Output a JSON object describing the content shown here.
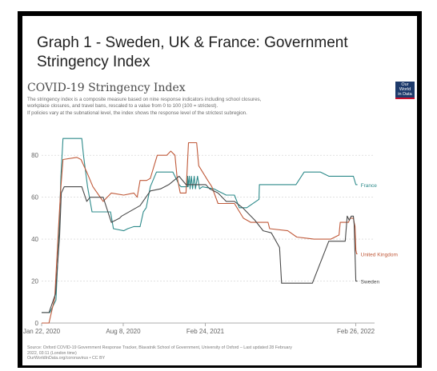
{
  "heading": {
    "line1": "Graph 1 - Sweden, UK & France: Government",
    "line2": "Stringency Index"
  },
  "logo": {
    "line1": "Our World",
    "line2": "in Data"
  },
  "source": {
    "line1": "Source: Oxford COVID-19 Government Response Tracker, Blavatnik School of Government, University of Oxford – Last updated 28 February",
    "line2": "2022, 03:11 (London time)",
    "line3": "OurWorldInData.org/coronavirus • CC BY"
  },
  "chart_data": {
    "type": "line",
    "title": "COVID-19 Stringency Index",
    "subtitle_lines": [
      "The stringency index is a composite measure based on nine response indicators including school closures,",
      "workplace closures, and travel bans, rescaled to a value from 0 to 100 (100 = strictest).",
      "If policies vary at the subnational level, the index shows the response level of the strictest subregion."
    ],
    "x_ticks": [
      {
        "day": 0,
        "label": "Jan 22, 2020"
      },
      {
        "day": 199,
        "label": "Aug 8, 2020"
      },
      {
        "day": 399,
        "label": "Feb 24, 2021"
      },
      {
        "day": 766,
        "label": "Feb 26, 2022"
      }
    ],
    "xlim": [
      0,
      800
    ],
    "y_ticks": [
      0,
      20,
      40,
      60,
      80
    ],
    "ylim": [
      0,
      90
    ],
    "gridlines": "horizontal dotted",
    "legend": "end-of-line labels",
    "series": [
      {
        "name": "France",
        "color": "#2e8b8b",
        "points": [
          [
            0,
            5
          ],
          [
            20,
            5
          ],
          [
            35,
            11
          ],
          [
            43,
            45
          ],
          [
            47,
            70
          ],
          [
            52,
            88
          ],
          [
            98,
            88
          ],
          [
            102,
            80
          ],
          [
            112,
            65
          ],
          [
            123,
            53
          ],
          [
            168,
            53
          ],
          [
            175,
            45
          ],
          [
            200,
            44
          ],
          [
            210,
            45
          ],
          [
            225,
            46
          ],
          [
            240,
            46
          ],
          [
            248,
            53
          ],
          [
            255,
            55
          ],
          [
            265,
            65
          ],
          [
            280,
            72
          ],
          [
            320,
            72
          ],
          [
            335,
            66
          ],
          [
            340,
            65
          ],
          [
            355,
            65
          ],
          [
            356,
            70
          ],
          [
            357,
            65
          ],
          [
            360,
            70
          ],
          [
            362,
            64
          ],
          [
            365,
            70
          ],
          [
            368,
            64
          ],
          [
            372,
            70
          ],
          [
            375,
            64
          ],
          [
            380,
            70
          ],
          [
            385,
            64
          ],
          [
            392,
            65
          ],
          [
            420,
            64
          ],
          [
            450,
            61
          ],
          [
            470,
            61
          ],
          [
            482,
            55
          ],
          [
            500,
            55
          ],
          [
            530,
            59
          ],
          [
            531,
            66
          ],
          [
            600,
            66
          ],
          [
            620,
            66
          ],
          [
            640,
            72
          ],
          [
            680,
            72
          ],
          [
            700,
            70
          ],
          [
            760,
            70
          ],
          [
            766,
            66
          ],
          [
            770,
            66
          ]
        ]
      },
      {
        "name": "United Kingdom",
        "color": "#c05a3a",
        "points": [
          [
            0,
            0
          ],
          [
            18,
            0
          ],
          [
            32,
            12
          ],
          [
            42,
            48
          ],
          [
            47,
            65
          ],
          [
            52,
            78
          ],
          [
            86,
            79
          ],
          [
            96,
            78
          ],
          [
            110,
            72
          ],
          [
            125,
            65
          ],
          [
            150,
            58
          ],
          [
            170,
            62
          ],
          [
            200,
            61
          ],
          [
            225,
            62
          ],
          [
            233,
            60
          ],
          [
            240,
            68
          ],
          [
            256,
            68
          ],
          [
            265,
            69
          ],
          [
            282,
            80
          ],
          [
            305,
            80
          ],
          [
            315,
            82
          ],
          [
            325,
            80
          ],
          [
            330,
            70
          ],
          [
            338,
            62
          ],
          [
            352,
            62
          ],
          [
            358,
            86
          ],
          [
            378,
            86
          ],
          [
            383,
            75
          ],
          [
            405,
            68
          ],
          [
            415,
            65
          ],
          [
            430,
            57
          ],
          [
            470,
            57
          ],
          [
            492,
            50
          ],
          [
            510,
            48
          ],
          [
            552,
            48
          ],
          [
            556,
            45
          ],
          [
            600,
            44
          ],
          [
            622,
            41
          ],
          [
            664,
            40
          ],
          [
            705,
            40
          ],
          [
            725,
            42
          ],
          [
            728,
            48
          ],
          [
            748,
            48
          ],
          [
            752,
            50
          ],
          [
            760,
            50
          ],
          [
            762,
            48
          ],
          [
            764,
            46
          ],
          [
            766,
            35
          ],
          [
            768,
            33
          ],
          [
            770,
            33
          ]
        ]
      },
      {
        "name": "Sweden",
        "color": "#4a4a4a",
        "points": [
          [
            0,
            5
          ],
          [
            18,
            5
          ],
          [
            34,
            14
          ],
          [
            44,
            42
          ],
          [
            48,
            62
          ],
          [
            55,
            65
          ],
          [
            98,
            65
          ],
          [
            110,
            58
          ],
          [
            118,
            60
          ],
          [
            150,
            60
          ],
          [
            170,
            48
          ],
          [
            190,
            50
          ],
          [
            195,
            51
          ],
          [
            240,
            56
          ],
          [
            265,
            63
          ],
          [
            290,
            64
          ],
          [
            310,
            66
          ],
          [
            335,
            70
          ],
          [
            352,
            66
          ],
          [
            400,
            66
          ],
          [
            410,
            64
          ],
          [
            430,
            62
          ],
          [
            450,
            58
          ],
          [
            470,
            58
          ],
          [
            490,
            55
          ],
          [
            520,
            49
          ],
          [
            540,
            44
          ],
          [
            560,
            43
          ],
          [
            580,
            36
          ],
          [
            585,
            19
          ],
          [
            650,
            19
          ],
          [
            660,
            19
          ],
          [
            700,
            39
          ],
          [
            740,
            39
          ],
          [
            745,
            51
          ],
          [
            750,
            49
          ],
          [
            755,
            51
          ],
          [
            760,
            51
          ],
          [
            762,
            47
          ],
          [
            766,
            20
          ],
          [
            770,
            20
          ]
        ]
      }
    ]
  }
}
